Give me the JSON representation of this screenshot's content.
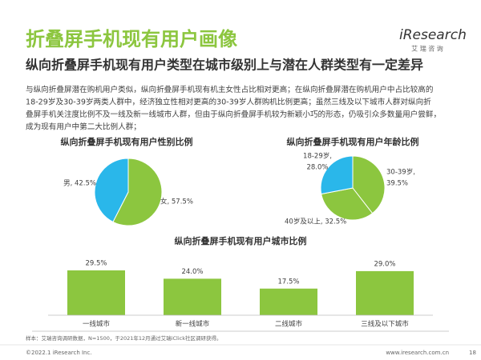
{
  "header": {
    "title": "折叠屏手机现有用户画像",
    "logo": "iResearch",
    "logo_sub": "艾 瑞 咨 询",
    "subtitle": "纵向折叠屏手机现有用户类型在城市级别上与潜在人群类型有一定差异",
    "paragraph": [
      "与纵向折叠屏潜在购机用户类似，纵向折叠屏手机现有机主女性占比相对更高；在纵向折叠屏潜在购机用户中占比较高的",
      "18-29岁及30-39岁两类人群中，经济独立性相对更高的30-39岁人群购机比例更高；虽然三线及以下城市人群对纵向折",
      "叠屏手机关注度比例不及一线及新一线城市人群，但由于纵向折叠屏手机较为新颖小巧的形态，仍吸引众多数量用户尝鲜，",
      "成为现有用户中第二大比例人群；"
    ]
  },
  "chart_data": [
    {
      "type": "pie",
      "title": "纵向折叠屏手机现有用户性别比例",
      "values": [
        57.5,
        42.5
      ],
      "labels": [
        [
          "女, 57.5%"
        ],
        [
          "男, 42.5%"
        ]
      ],
      "colors": [
        "#8cc63f",
        "#2ab7ea"
      ]
    },
    {
      "type": "pie",
      "title": "纵向折叠屏手机现有用户年龄比例",
      "values": [
        39.5,
        32.5,
        28.0
      ],
      "labels": [
        [
          "30-39岁,",
          "39.5%"
        ],
        [
          "40岁及以上, 32.5%"
        ],
        [
          "18-29岁,",
          "28.0%"
        ]
      ],
      "colors": [
        "#8cc63f",
        "#8cc63f",
        "#2ab7ea"
      ]
    },
    {
      "type": "bar",
      "title": "纵向折叠屏手机现有用户城市比例",
      "categories": [
        "一线城市",
        "新一线城市",
        "二线城市",
        "三线及以下城市"
      ],
      "values": [
        29.5,
        24.0,
        17.5,
        29.0
      ],
      "value_labels": [
        "29.5%",
        "24.0%",
        "17.5%",
        "29.0%"
      ],
      "color": "#8cc63f"
    }
  ],
  "footer": {
    "source": "样本：艾瑞咨询调研数据，N=1500，于2021年12月通过艾瑞iClick社区调研获得。",
    "copyright": "©2022.1 iResearch Inc.",
    "url": "www.iresearch.com.cn",
    "page": "18"
  }
}
